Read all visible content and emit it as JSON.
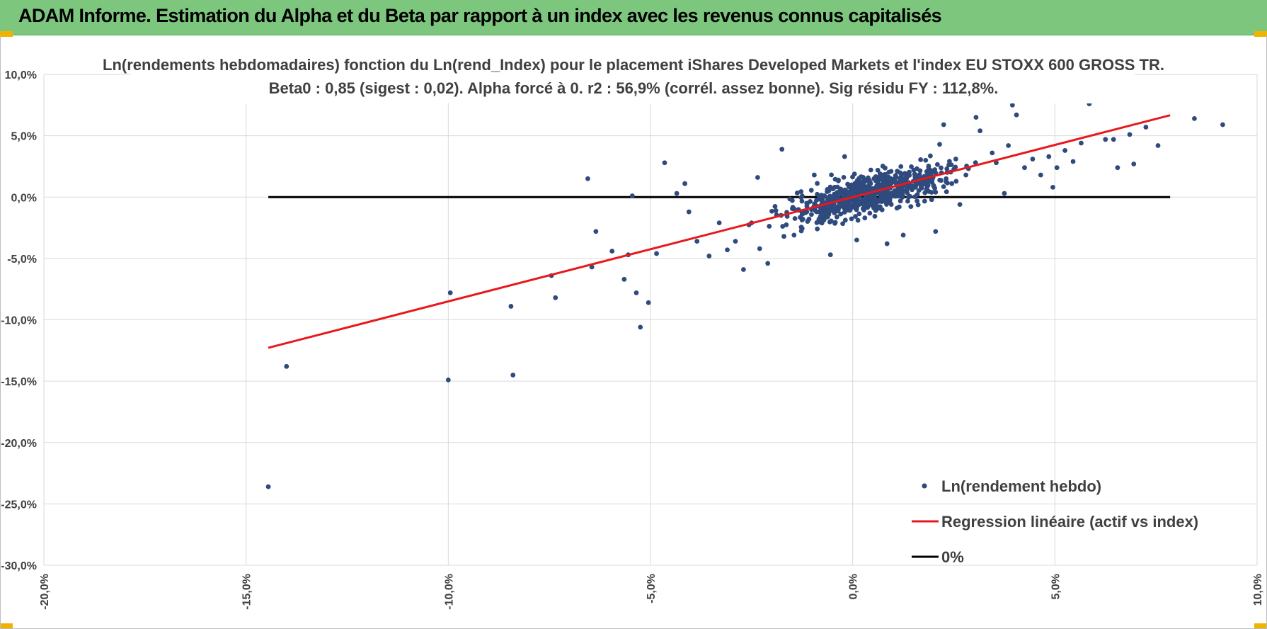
{
  "banner": {
    "title": "ADAM Informe. Estimation du Alpha et du Beta par rapport à un index avec les revenus connus capitalisés"
  },
  "colors": {
    "banner": "#7dc67e",
    "points": "#2f4a7c",
    "regression": "#e8181c",
    "zero": "#000000",
    "grid": "#d9d9d9"
  },
  "chart_data": {
    "type": "scatter",
    "title": "Ln(rendements hebdomadaires) fonction du Ln(rend_Index) pour le placement iShares Developed Markets et l'index EU STOXX 600 GROSS TR.",
    "subtitle": "Beta0 : 0,85  (sigest : 0,02). Alpha forcé à 0. r2 : 56,9% (corrél. assez bonne). Sig résidu FY : 112,8%.",
    "xlim": [
      -0.2,
      0.1
    ],
    "ylim": [
      -0.3,
      0.1
    ],
    "x_ticks": [
      {
        "v": -0.2,
        "label": "-20,0%"
      },
      {
        "v": -0.15,
        "label": "-15,0%"
      },
      {
        "v": -0.1,
        "label": "-10,0%"
      },
      {
        "v": -0.05,
        "label": "-5,0%"
      },
      {
        "v": 0.0,
        "label": "0,0%"
      },
      {
        "v": 0.05,
        "label": "5,0%"
      },
      {
        "v": 0.1,
        "label": "10,0%"
      }
    ],
    "y_ticks": [
      {
        "v": 0.1,
        "label": "10,0%"
      },
      {
        "v": 0.05,
        "label": "5,0%"
      },
      {
        "v": 0.0,
        "label": "0,0%"
      },
      {
        "v": -0.05,
        "label": "-5,0%"
      },
      {
        "v": -0.1,
        "label": "-10,0%"
      },
      {
        "v": -0.15,
        "label": "-15,0%"
      },
      {
        "v": -0.2,
        "label": "-20,0%"
      },
      {
        "v": -0.25,
        "label": "-25,0%"
      },
      {
        "v": -0.3,
        "label": "-30,0%"
      }
    ],
    "grid": true,
    "legend_position": "bottom-right",
    "series": [
      {
        "name": "Ln(rendement hebdo)",
        "kind": "scatter",
        "color": "#2f4a7c",
        "points": [
          [
            -0.1445,
            -0.236
          ],
          [
            -0.14,
            -0.138
          ],
          [
            -0.1,
            -0.149
          ],
          [
            -0.0995,
            -0.078
          ],
          [
            -0.0845,
            -0.089
          ],
          [
            -0.084,
            -0.145
          ],
          [
            -0.0745,
            -0.064
          ],
          [
            -0.0735,
            -0.082
          ],
          [
            -0.0655,
            0.015
          ],
          [
            -0.0645,
            -0.057
          ],
          [
            -0.0635,
            -0.028
          ],
          [
            -0.0595,
            -0.044
          ],
          [
            -0.0565,
            -0.067
          ],
          [
            -0.0555,
            -0.047
          ],
          [
            -0.0545,
            0.001
          ],
          [
            -0.0535,
            -0.078
          ],
          [
            -0.0525,
            -0.106
          ],
          [
            -0.0505,
            -0.086
          ],
          [
            -0.0485,
            -0.046
          ],
          [
            -0.0465,
            0.028
          ],
          [
            -0.0435,
            0.003
          ],
          [
            -0.0415,
            0.011
          ],
          [
            -0.0405,
            -0.012
          ],
          [
            -0.0385,
            -0.036
          ],
          [
            -0.0355,
            -0.048
          ],
          [
            -0.033,
            -0.021
          ],
          [
            -0.031,
            -0.043
          ],
          [
            -0.029,
            -0.036
          ],
          [
            -0.027,
            -0.059
          ],
          [
            -0.025,
            -0.021
          ],
          [
            -0.023,
            -0.042
          ],
          [
            -0.021,
            -0.054
          ],
          [
            -0.019,
            -0.011
          ],
          [
            -0.017,
            -0.032
          ],
          [
            -0.0235,
            0.016
          ],
          [
            -0.0175,
            0.039
          ],
          [
            -0.0145,
            -0.031
          ],
          [
            -0.0125,
            -0.014
          ],
          [
            -0.0095,
            0.018
          ],
          [
            -0.0055,
            -0.047
          ],
          [
            -0.002,
            0.033
          ],
          [
            0.001,
            -0.035
          ],
          [
            0.003,
            -0.017
          ],
          [
            0.0085,
            -0.038
          ],
          [
            0.0125,
            -0.031
          ],
          [
            0.0185,
            0.012
          ],
          [
            0.0205,
            -0.028
          ],
          [
            0.0215,
            0.043
          ],
          [
            0.0225,
            0.059
          ],
          [
            0.0255,
            0.031
          ],
          [
            0.028,
            0.018
          ],
          [
            0.0305,
            0.065
          ],
          [
            0.0315,
            0.054
          ],
          [
            0.0345,
            0.036
          ],
          [
            0.0355,
            0.028
          ],
          [
            0.0375,
            0.003
          ],
          [
            0.0385,
            0.042
          ],
          [
            0.0395,
            0.075
          ],
          [
            0.0405,
            0.067
          ],
          [
            0.0425,
            0.024
          ],
          [
            0.0445,
            0.031
          ],
          [
            0.0465,
            0.018
          ],
          [
            0.0485,
            0.033
          ],
          [
            0.0495,
            0.008
          ],
          [
            0.0505,
            0.024
          ],
          [
            0.0525,
            0.038
          ],
          [
            0.0545,
            0.029
          ],
          [
            0.0565,
            0.044
          ],
          [
            0.0585,
            0.076
          ],
          [
            0.0625,
            0.047
          ],
          [
            0.0645,
            0.047
          ],
          [
            0.0655,
            0.024
          ],
          [
            0.0685,
            0.051
          ],
          [
            0.0695,
            0.027
          ],
          [
            0.0725,
            0.057
          ],
          [
            0.0755,
            0.042
          ],
          [
            0.0845,
            0.064
          ],
          [
            0.0915,
            0.059
          ],
          [
            0.0205,
            0.004
          ],
          [
            0.0245,
            0.011
          ],
          [
            0.0265,
            -0.006
          ],
          [
            0.0155,
            0.008
          ],
          [
            0.0095,
            0.021
          ],
          [
            0.0115,
            -0.008
          ]
        ]
      },
      {
        "name": "Regression linéaire (actif vs index)",
        "kind": "line",
        "color": "#e8181c",
        "points": [
          [
            -0.1445,
            -0.1228
          ],
          [
            0.0785,
            0.0667
          ]
        ]
      },
      {
        "name": "0%",
        "kind": "line",
        "color": "#000000",
        "points": [
          [
            -0.1445,
            0.0
          ],
          [
            0.0785,
            0.0
          ]
        ]
      }
    ]
  }
}
